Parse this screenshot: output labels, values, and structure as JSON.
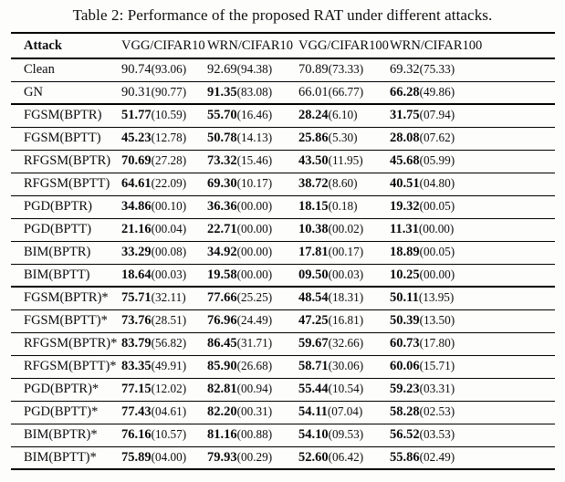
{
  "table": {
    "title": "Table 2: Performance of the proposed RAT under different attacks.",
    "headers": [
      "Attack",
      "VGG/CIFAR10",
      "WRN/CIFAR10",
      "VGG/CIFAR100",
      "WRN/CIFAR100"
    ],
    "rows": [
      {
        "attack": "Clean",
        "thick_after": false,
        "cells": [
          {
            "m": "90.74",
            "p": "(93.06)",
            "b": false
          },
          {
            "m": "92.69",
            "p": "(94.38)",
            "b": false
          },
          {
            "m": "70.89",
            "p": "(73.33)",
            "b": false
          },
          {
            "m": "69.32",
            "p": "(75.33)",
            "b": false
          }
        ]
      },
      {
        "attack": "GN",
        "thick_after": true,
        "cells": [
          {
            "m": "90.31",
            "p": "(90.77)",
            "b": false
          },
          {
            "m": "91.35",
            "p": "(83.08)",
            "b": true
          },
          {
            "m": "66.01",
            "p": "(66.77)",
            "b": false
          },
          {
            "m": "66.28",
            "p": "(49.86)",
            "b": true
          }
        ]
      },
      {
        "attack": "FGSM(BPTR)",
        "thick_after": false,
        "cells": [
          {
            "m": "51.77",
            "p": "(10.59)",
            "b": true
          },
          {
            "m": "55.70",
            "p": "(16.46)",
            "b": true
          },
          {
            "m": "28.24",
            "p": "(6.10)",
            "b": true
          },
          {
            "m": "31.75",
            "p": "(07.94)",
            "b": true
          }
        ]
      },
      {
        "attack": "FGSM(BPTT)",
        "thick_after": false,
        "cells": [
          {
            "m": "45.23",
            "p": "(12.78)",
            "b": true
          },
          {
            "m": "50.78",
            "p": "(14.13)",
            "b": true
          },
          {
            "m": "25.86",
            "p": "(5.30)",
            "b": true
          },
          {
            "m": "28.08",
            "p": "(07.62)",
            "b": true
          }
        ]
      },
      {
        "attack": "RFGSM(BPTR)",
        "thick_after": false,
        "cells": [
          {
            "m": "70.69",
            "p": "(27.28)",
            "b": true
          },
          {
            "m": "73.32",
            "p": "(15.46)",
            "b": true
          },
          {
            "m": "43.50",
            "p": "(11.95)",
            "b": true
          },
          {
            "m": "45.68",
            "p": "(05.99)",
            "b": true
          }
        ]
      },
      {
        "attack": "RFGSM(BPTT)",
        "thick_after": false,
        "cells": [
          {
            "m": "64.61",
            "p": "(22.09)",
            "b": true
          },
          {
            "m": "69.30",
            "p": "(10.17)",
            "b": true
          },
          {
            "m": "38.72",
            "p": "(8.60)",
            "b": true
          },
          {
            "m": "40.51",
            "p": "(04.80)",
            "b": true
          }
        ]
      },
      {
        "attack": "PGD(BPTR)",
        "thick_after": false,
        "cells": [
          {
            "m": "34.86",
            "p": "(00.10)",
            "b": true
          },
          {
            "m": "36.36",
            "p": "(00.00)",
            "b": true
          },
          {
            "m": "18.15",
            "p": "(0.18)",
            "b": true
          },
          {
            "m": "19.32",
            "p": "(00.05)",
            "b": true
          }
        ]
      },
      {
        "attack": "PGD(BPTT)",
        "thick_after": false,
        "cells": [
          {
            "m": "21.16",
            "p": "(00.04)",
            "b": true
          },
          {
            "m": "22.71",
            "p": "(00.00)",
            "b": true
          },
          {
            "m": "10.38",
            "p": "(00.02)",
            "b": true
          },
          {
            "m": "11.31",
            "p": "(00.00)",
            "b": true
          }
        ]
      },
      {
        "attack": "BIM(BPTR)",
        "thick_after": false,
        "cells": [
          {
            "m": "33.29",
            "p": "(00.08)",
            "b": true
          },
          {
            "m": "34.92",
            "p": "(00.00)",
            "b": true
          },
          {
            "m": "17.81",
            "p": "(00.17)",
            "b": true
          },
          {
            "m": "18.89",
            "p": "(00.05)",
            "b": true
          }
        ]
      },
      {
        "attack": "BIM(BPTT)",
        "thick_after": true,
        "cells": [
          {
            "m": "18.64",
            "p": "(00.03)",
            "b": true
          },
          {
            "m": "19.58",
            "p": "(00.00)",
            "b": true
          },
          {
            "m": "09.50",
            "p": "(00.03)",
            "b": true
          },
          {
            "m": "10.25",
            "p": "(00.00)",
            "b": true
          }
        ]
      },
      {
        "attack": "FGSM(BPTR)*",
        "thick_after": false,
        "cells": [
          {
            "m": "75.71",
            "p": "(32.11)",
            "b": true
          },
          {
            "m": "77.66",
            "p": "(25.25)",
            "b": true
          },
          {
            "m": "48.54",
            "p": "(18.31)",
            "b": true
          },
          {
            "m": "50.11",
            "p": "(13.95)",
            "b": true
          }
        ]
      },
      {
        "attack": "FGSM(BPTT)*",
        "thick_after": false,
        "cells": [
          {
            "m": "73.76",
            "p": "(28.51)",
            "b": true
          },
          {
            "m": "76.96",
            "p": "(24.49)",
            "b": true
          },
          {
            "m": "47.25",
            "p": "(16.81)",
            "b": true
          },
          {
            "m": "50.39",
            "p": "(13.50)",
            "b": true
          }
        ]
      },
      {
        "attack": "RFGSM(BPTR)*",
        "thick_after": false,
        "cells": [
          {
            "m": "83.79",
            "p": "(56.82)",
            "b": true
          },
          {
            "m": "86.45",
            "p": "(31.71)",
            "b": true
          },
          {
            "m": "59.67",
            "p": "(32.66)",
            "b": true
          },
          {
            "m": "60.73",
            "p": "(17.80)",
            "b": true
          }
        ]
      },
      {
        "attack": "RFGSM(BPTT)*",
        "thick_after": false,
        "cells": [
          {
            "m": "83.35",
            "p": "(49.91)",
            "b": true
          },
          {
            "m": "85.90",
            "p": "(26.68)",
            "b": true
          },
          {
            "m": "58.71",
            "p": "(30.06)",
            "b": true
          },
          {
            "m": "60.06",
            "p": "(15.71)",
            "b": true
          }
        ]
      },
      {
        "attack": "PGD(BPTR)*",
        "thick_after": false,
        "cells": [
          {
            "m": "77.15",
            "p": "(12.02)",
            "b": true
          },
          {
            "m": "82.81",
            "p": "(00.94)",
            "b": true
          },
          {
            "m": "55.44",
            "p": "(10.54)",
            "b": true
          },
          {
            "m": "59.23",
            "p": "(03.31)",
            "b": true
          }
        ]
      },
      {
        "attack": "PGD(BPTT)*",
        "thick_after": false,
        "cells": [
          {
            "m": "77.43",
            "p": "(04.61)",
            "b": true
          },
          {
            "m": "82.20",
            "p": "(00.31)",
            "b": true
          },
          {
            "m": "54.11",
            "p": "(07.04)",
            "b": true
          },
          {
            "m": "58.28",
            "p": "(02.53)",
            "b": true
          }
        ]
      },
      {
        "attack": "BIM(BPTR)*",
        "thick_after": false,
        "cells": [
          {
            "m": "76.16",
            "p": "(10.57)",
            "b": true
          },
          {
            "m": "81.16",
            "p": "(00.88)",
            "b": true
          },
          {
            "m": "54.10",
            "p": "(09.53)",
            "b": true
          },
          {
            "m": "56.52",
            "p": "(03.53)",
            "b": true
          }
        ]
      },
      {
        "attack": "BIM(BPTT)*",
        "thick_after": false,
        "cells": [
          {
            "m": "75.89",
            "p": "(04.00)",
            "b": true
          },
          {
            "m": "79.93",
            "p": "(00.29)",
            "b": true
          },
          {
            "m": "52.60",
            "p": "(06.42)",
            "b": true
          },
          {
            "m": "55.86",
            "p": "(02.49)",
            "b": true
          }
        ]
      }
    ]
  }
}
